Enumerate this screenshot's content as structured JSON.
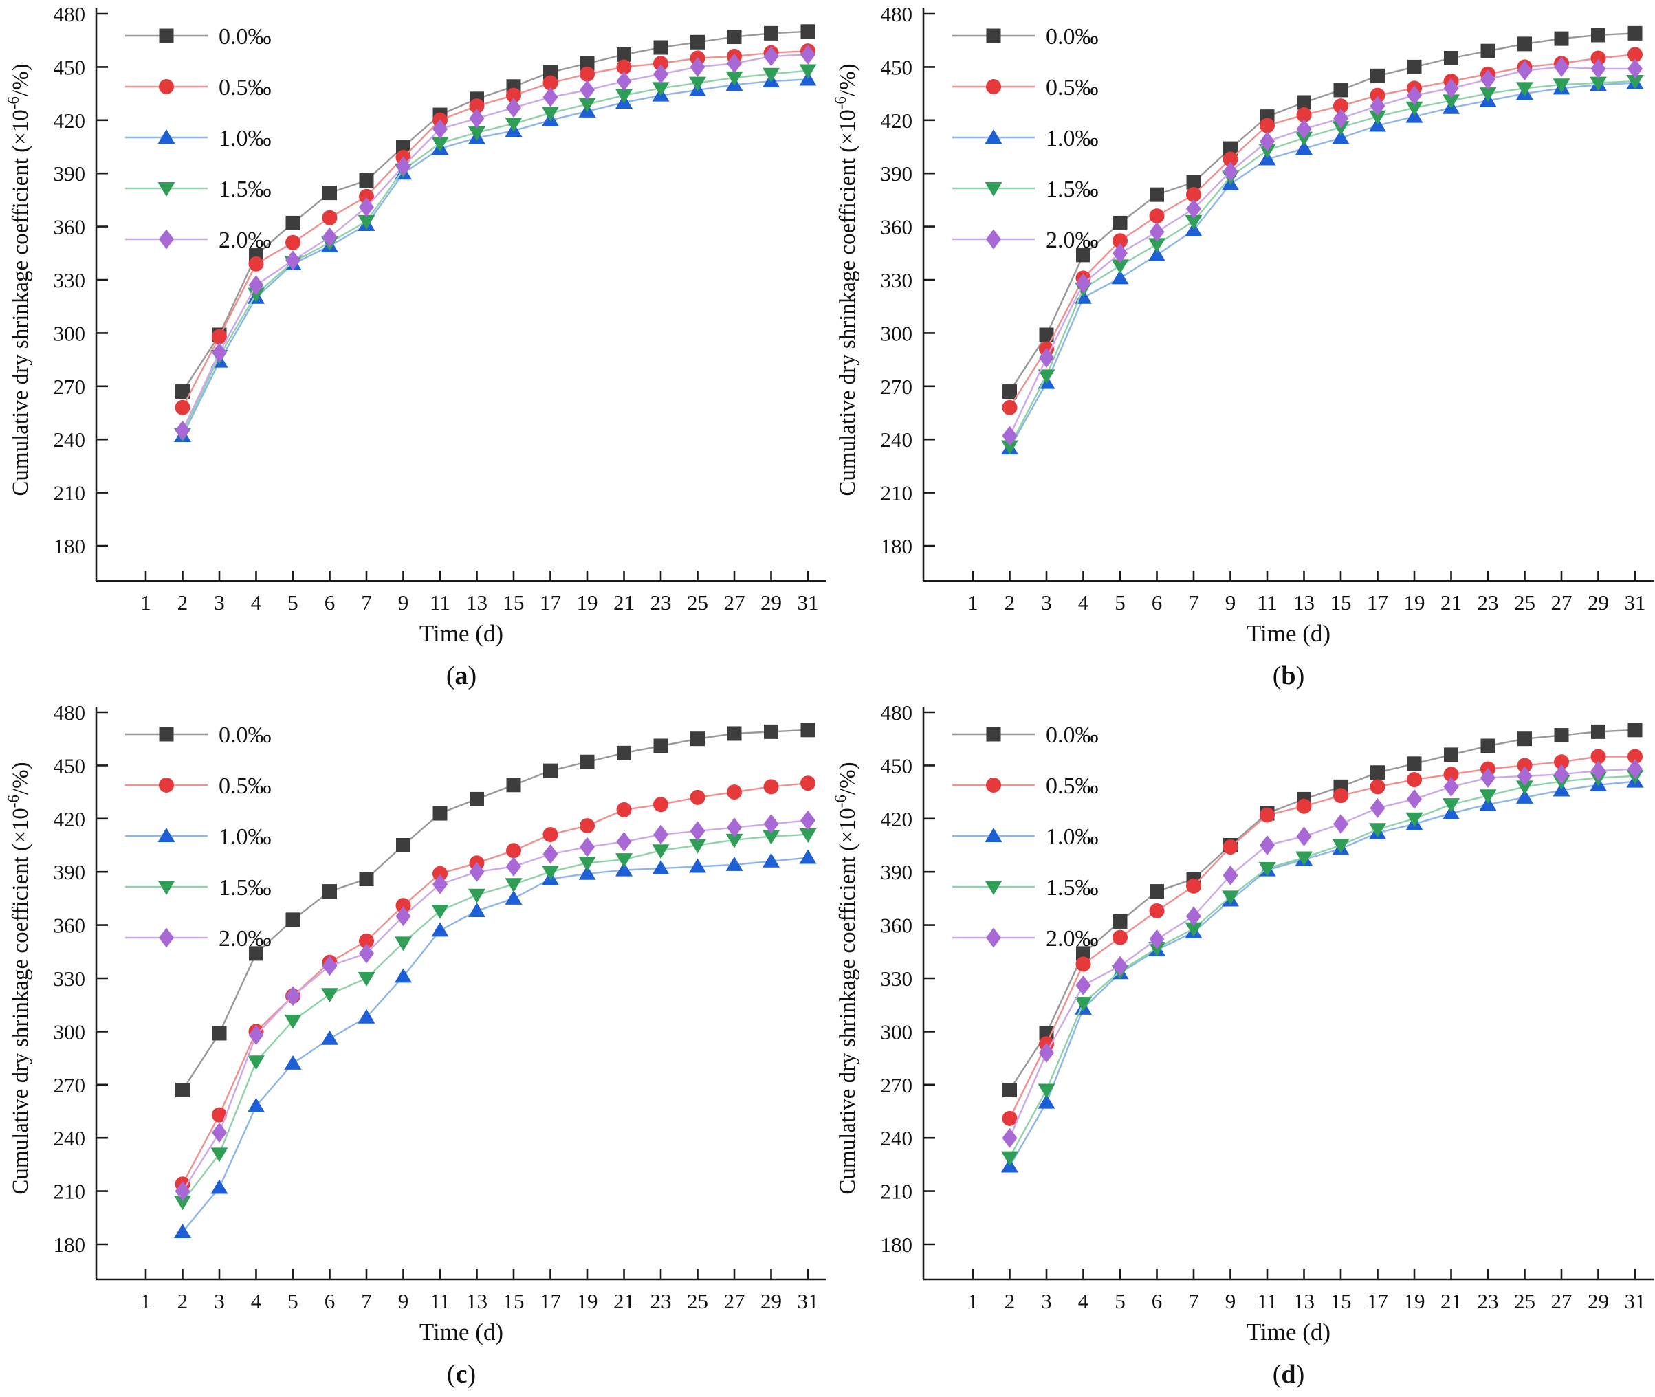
{
  "figure": {
    "background": "#ffffff",
    "axis_color": "#1a1a1a",
    "x_label": "Time (d)",
    "y_label_prefix": "Cumulative dry shrinkage coefficient (×10",
    "y_label_sup": "-6",
    "y_label_suffix": "/%)",
    "x_tick_labels": [
      "1",
      "2",
      "3",
      "4",
      "5",
      "6",
      "7",
      "9",
      "11",
      "13",
      "15",
      "17",
      "19",
      "21",
      "23",
      "25",
      "27",
      "29",
      "31"
    ],
    "y_tick_labels": [
      "180",
      "210",
      "240",
      "270",
      "300",
      "330",
      "360",
      "390",
      "420",
      "450",
      "480"
    ],
    "legend_position": "top-left",
    "grid": false
  },
  "series_meta": [
    {
      "name": "0.0‰",
      "marker": "square",
      "marker_color": "#3d3d3d",
      "line_color": "#999999"
    },
    {
      "name": "0.5‰",
      "marker": "circle",
      "marker_color": "#e6393b",
      "line_color": "#f19090"
    },
    {
      "name": "1.0‰",
      "marker": "triangle-up",
      "marker_color": "#1d5fd6",
      "line_color": "#8db6ec"
    },
    {
      "name": "1.5‰",
      "marker": "triangle-down",
      "marker_color": "#2f9e56",
      "line_color": "#90d3ab"
    },
    {
      "name": "2.0‰",
      "marker": "diamond",
      "marker_color": "#a869d6",
      "line_color": "#cda9ec"
    }
  ],
  "chart_data": [
    {
      "id": "a",
      "caption": "(a)",
      "caption_letter": "a",
      "type": "line",
      "title": "",
      "xlabel": "Time (d)",
      "ylabel": "Cumulative dry shrinkage coefficient (×10-6/%)",
      "ylim": [
        180,
        480
      ],
      "x_days": [
        2,
        3,
        4,
        5,
        6,
        7,
        9,
        11,
        13,
        15,
        17,
        19,
        21,
        23,
        25,
        27,
        29,
        31
      ],
      "series": [
        {
          "name": "0.0‰",
          "values": [
            267,
            299,
            344,
            362,
            379,
            386,
            405,
            423,
            432,
            439,
            447,
            452,
            457,
            461,
            464,
            467,
            469,
            470
          ]
        },
        {
          "name": "0.5‰",
          "values": [
            258,
            298,
            339,
            351,
            365,
            377,
            399,
            420,
            428,
            434,
            441,
            446,
            450,
            452,
            455,
            456,
            458,
            459
          ]
        },
        {
          "name": "1.0‰",
          "values": [
            242,
            284,
            320,
            339,
            349,
            361,
            390,
            404,
            410,
            414,
            420,
            425,
            430,
            434,
            437,
            440,
            442,
            443
          ]
        },
        {
          "name": "1.5‰",
          "values": [
            243,
            287,
            322,
            340,
            351,
            363,
            392,
            407,
            413,
            418,
            424,
            429,
            434,
            438,
            441,
            444,
            446,
            448
          ]
        },
        {
          "name": "2.0‰",
          "values": [
            245,
            289,
            327,
            341,
            354,
            371,
            394,
            415,
            421,
            427,
            433,
            437,
            442,
            446,
            450,
            452,
            456,
            457
          ]
        }
      ]
    },
    {
      "id": "b",
      "caption": "(b)",
      "caption_letter": "b",
      "type": "line",
      "title": "",
      "xlabel": "Time (d)",
      "ylabel": "Cumulative dry shrinkage coefficient (×10-6/%)",
      "ylim": [
        180,
        480
      ],
      "x_days": [
        2,
        3,
        4,
        5,
        6,
        7,
        9,
        11,
        13,
        15,
        17,
        19,
        21,
        23,
        25,
        27,
        29,
        31
      ],
      "series": [
        {
          "name": "0.0‰",
          "values": [
            267,
            299,
            344,
            362,
            378,
            385,
            404,
            422,
            430,
            437,
            445,
            450,
            455,
            459,
            463,
            466,
            468,
            469
          ]
        },
        {
          "name": "0.5‰",
          "values": [
            258,
            291,
            331,
            352,
            366,
            378,
            398,
            417,
            423,
            428,
            434,
            438,
            442,
            446,
            450,
            452,
            455,
            457
          ]
        },
        {
          "name": "1.0‰",
          "values": [
            235,
            272,
            320,
            331,
            344,
            358,
            384,
            398,
            404,
            410,
            417,
            422,
            427,
            431,
            435,
            438,
            440,
            441
          ]
        },
        {
          "name": "1.5‰",
          "values": [
            236,
            276,
            325,
            338,
            350,
            363,
            388,
            403,
            410,
            416,
            422,
            427,
            431,
            435,
            438,
            440,
            441,
            442
          ]
        },
        {
          "name": "2.0‰",
          "values": [
            242,
            286,
            328,
            345,
            357,
            370,
            391,
            408,
            415,
            421,
            428,
            434,
            438,
            443,
            448,
            450,
            449,
            449
          ]
        }
      ]
    },
    {
      "id": "c",
      "caption": "(c)",
      "caption_letter": "c",
      "type": "line",
      "title": "",
      "xlabel": "Time (d)",
      "ylabel": "Cumulative dry shrinkage coefficient (×10-6/%)",
      "ylim": [
        180,
        480
      ],
      "x_days": [
        2,
        3,
        4,
        5,
        6,
        7,
        9,
        11,
        13,
        15,
        17,
        19,
        21,
        23,
        25,
        27,
        29,
        31
      ],
      "series": [
        {
          "name": "0.0‰",
          "values": [
            267,
            299,
            344,
            363,
            379,
            386,
            405,
            423,
            431,
            439,
            447,
            452,
            457,
            461,
            465,
            468,
            469,
            470
          ]
        },
        {
          "name": "0.5‰",
          "values": [
            214,
            253,
            300,
            320,
            339,
            351,
            371,
            389,
            395,
            402,
            411,
            416,
            425,
            428,
            432,
            435,
            438,
            440
          ]
        },
        {
          "name": "1.0‰",
          "values": [
            187,
            212,
            258,
            282,
            296,
            308,
            331,
            357,
            368,
            375,
            386,
            389,
            391,
            392,
            393,
            394,
            396,
            398
          ]
        },
        {
          "name": "1.5‰",
          "values": [
            204,
            231,
            283,
            306,
            321,
            330,
            350,
            368,
            377,
            383,
            390,
            395,
            397,
            402,
            405,
            408,
            410,
            411
          ]
        },
        {
          "name": "2.0‰",
          "values": [
            210,
            243,
            298,
            320,
            337,
            344,
            365,
            383,
            390,
            393,
            400,
            404,
            407,
            411,
            413,
            415,
            417,
            419
          ]
        }
      ]
    },
    {
      "id": "d",
      "caption": "(d)",
      "caption_letter": "d",
      "type": "line",
      "title": "",
      "xlabel": "Time (d)",
      "ylabel": "Cumulative dry shrinkage coefficient (×10-6/%)",
      "ylim": [
        180,
        480
      ],
      "x_days": [
        2,
        3,
        4,
        5,
        6,
        7,
        9,
        11,
        13,
        15,
        17,
        19,
        21,
        23,
        25,
        27,
        29,
        31
      ],
      "series": [
        {
          "name": "0.0‰",
          "values": [
            267,
            299,
            344,
            362,
            379,
            386,
            405,
            423,
            431,
            438,
            446,
            451,
            456,
            461,
            465,
            467,
            469,
            470
          ]
        },
        {
          "name": "0.5‰",
          "values": [
            251,
            293,
            338,
            353,
            368,
            382,
            404,
            422,
            427,
            433,
            438,
            442,
            445,
            448,
            450,
            452,
            455,
            455
          ]
        },
        {
          "name": "1.0‰",
          "values": [
            224,
            260,
            313,
            333,
            346,
            356,
            374,
            391,
            397,
            403,
            412,
            417,
            423,
            428,
            432,
            436,
            439,
            441
          ]
        },
        {
          "name": "1.5‰",
          "values": [
            229,
            267,
            316,
            334,
            347,
            358,
            376,
            392,
            398,
            405,
            414,
            420,
            428,
            433,
            438,
            441,
            443,
            444
          ]
        },
        {
          "name": "2.0‰",
          "values": [
            240,
            288,
            326,
            337,
            352,
            365,
            388,
            405,
            410,
            417,
            426,
            431,
            438,
            443,
            444,
            445,
            447,
            448
          ]
        }
      ]
    }
  ]
}
